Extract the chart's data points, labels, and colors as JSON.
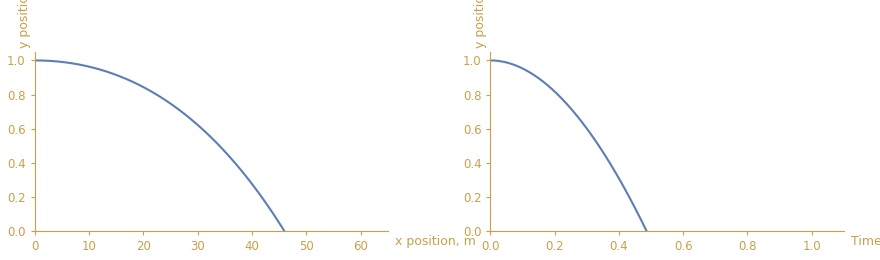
{
  "bg_color": "#ffffff",
  "line_color": "#5b7fb5",
  "line_width": 1.5,
  "plot1": {
    "ylabel": "y position, m",
    "xlabel": "x position, m",
    "xlim": [
      0,
      65
    ],
    "ylim": [
      0,
      1.05
    ],
    "xticks": [
      0,
      10,
      20,
      30,
      40,
      50,
      60
    ],
    "yticks": [
      0.0,
      0.2,
      0.4,
      0.6,
      0.8,
      1.0
    ]
  },
  "plot2": {
    "ylabel": "y position, m",
    "xlabel": "Time, s",
    "xlim": [
      0,
      1.1
    ],
    "ylim": [
      0,
      1.05
    ],
    "xticks": [
      0.0,
      0.2,
      0.4,
      0.6,
      0.8,
      1.0
    ],
    "yticks": [
      0.0,
      0.2,
      0.4,
      0.6,
      0.8,
      1.0
    ]
  },
  "label_color": "#c8a04a",
  "label_fontsize": 9,
  "tick_fontsize": 8.5,
  "tick_color": "#c8a04a",
  "axis_color": "#c8a04a"
}
